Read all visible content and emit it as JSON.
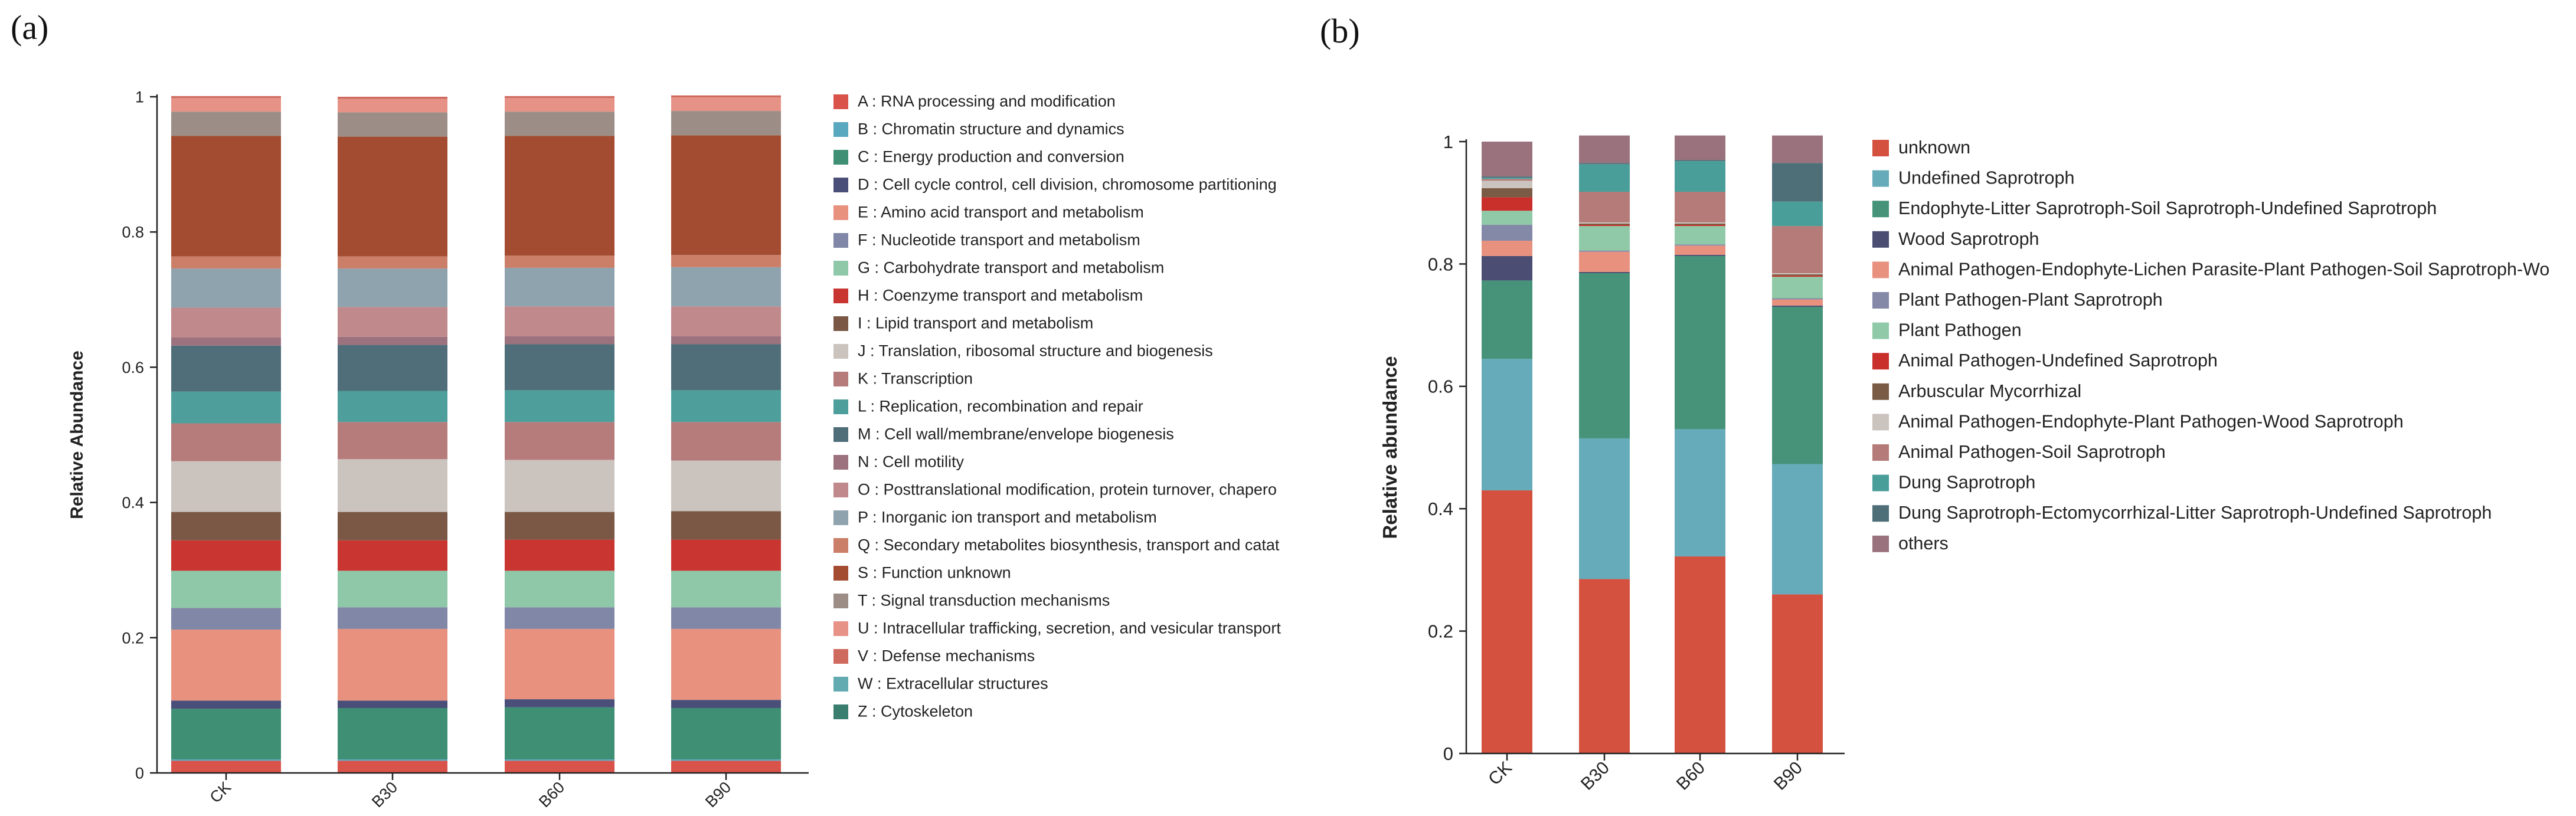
{
  "panel_labels": [
    "(a)",
    "(b)"
  ],
  "chart_data": [
    {
      "type": "bar",
      "stacked": true,
      "title": "",
      "xlabel": "",
      "ylabel": "Relative Abundance",
      "ylim": [
        0,
        1
      ],
      "yticks": [
        0,
        0.2,
        0.4,
        0.6,
        0.8,
        1
      ],
      "ytick_labels": [
        "0",
        "0.2",
        "0.4",
        "0.6",
        "0.8",
        "1"
      ],
      "categories": [
        "CK",
        "B30",
        "B60",
        "B90"
      ],
      "legend_position": "right",
      "series": [
        {
          "name": "A : RNA processing and modification",
          "color": "#D9534B",
          "values": [
            0.018,
            0.018,
            0.018,
            0.018
          ]
        },
        {
          "name": "B : Chromatin structure and dynamics",
          "color": "#5AA8C0",
          "values": [
            0.002,
            0.002,
            0.002,
            0.002
          ]
        },
        {
          "name": "C : Energy production and conversion",
          "color": "#3F8F74",
          "values": [
            0.075,
            0.076,
            0.077,
            0.076
          ]
        },
        {
          "name": "D : Cell cycle control, cell division, chromosome partitioning",
          "color": "#4A4F7A",
          "values": [
            0.012,
            0.011,
            0.012,
            0.012
          ]
        },
        {
          "name": "E : Amino acid transport and metabolism",
          "color": "#E8917E",
          "values": [
            0.105,
            0.106,
            0.104,
            0.105
          ]
        },
        {
          "name": "F : Nucleotide transport and metabolism",
          "color": "#8187A6",
          "values": [
            0.032,
            0.032,
            0.032,
            0.032
          ]
        },
        {
          "name": "G : Carbohydrate transport and metabolism",
          "color": "#8EC8A8",
          "values": [
            0.055,
            0.054,
            0.054,
            0.054
          ]
        },
        {
          "name": "H : Coenzyme transport and metabolism",
          "color": "#C93632",
          "values": [
            0.045,
            0.045,
            0.046,
            0.046
          ]
        },
        {
          "name": "I : Lipid transport and metabolism",
          "color": "#7A5845",
          "values": [
            0.042,
            0.042,
            0.041,
            0.042
          ]
        },
        {
          "name": "J : Translation, ribosomal structure and biogenesis",
          "color": "#CBC3BE",
          "values": [
            0.075,
            0.078,
            0.077,
            0.075
          ]
        },
        {
          "name": "K : Transcription",
          "color": "#B57C7B",
          "values": [
            0.056,
            0.055,
            0.056,
            0.057
          ]
        },
        {
          "name": "L : Replication, recombination and repair",
          "color": "#4E9E9C",
          "values": [
            0.047,
            0.046,
            0.047,
            0.047
          ]
        },
        {
          "name": "M : Cell wall/membrane/envelope biogenesis",
          "color": "#4F6E79",
          "values": [
            0.068,
            0.068,
            0.068,
            0.068
          ]
        },
        {
          "name": "N : Cell motility",
          "color": "#9C727F",
          "values": [
            0.012,
            0.012,
            0.012,
            0.012
          ]
        },
        {
          "name": "O : Posttranslational modification, protein turnover, chapero",
          "color": "#C0898C",
          "values": [
            0.044,
            0.044,
            0.044,
            0.044
          ]
        },
        {
          "name": "P : Inorganic ion transport and metabolism",
          "color": "#8FA3AF",
          "values": [
            0.058,
            0.057,
            0.057,
            0.058
          ]
        },
        {
          "name": "Q : Secondary metabolites biosynthesis, transport and catat",
          "color": "#CB7F68",
          "values": [
            0.018,
            0.018,
            0.018,
            0.018
          ]
        },
        {
          "name": "S : Function unknown",
          "color": "#A34C31",
          "values": [
            0.178,
            0.177,
            0.177,
            0.177
          ]
        },
        {
          "name": "T : Signal transduction mechanisms",
          "color": "#9C8E86",
          "values": [
            0.036,
            0.036,
            0.036,
            0.036
          ]
        },
        {
          "name": "U : Intracellular trafficking, secretion, and vesicular transport",
          "color": "#E79287",
          "values": [
            0.02,
            0.02,
            0.02,
            0.02
          ]
        },
        {
          "name": "V : Defense mechanisms",
          "color": "#CF6B5E",
          "values": [
            0.003,
            0.003,
            0.003,
            0.003
          ]
        },
        {
          "name": "W : Extracellular structures",
          "color": "#62ABB0",
          "values": [
            0.0,
            0.0,
            0.0,
            0.0
          ]
        },
        {
          "name": "Z : Cytoskeleton",
          "color": "#3A7E70",
          "values": [
            0.0,
            0.0,
            0.0,
            0.0
          ]
        }
      ]
    },
    {
      "type": "bar",
      "stacked": true,
      "title": "",
      "xlabel": "",
      "ylabel": "Relative abundance",
      "ylim": [
        0,
        1
      ],
      "yticks": [
        0,
        0.2,
        0.4,
        0.6,
        0.8,
        1
      ],
      "ytick_labels": [
        "0",
        "0.2",
        "0.4",
        "0.6",
        "0.8",
        "1"
      ],
      "categories": [
        "CK",
        "B30",
        "B60",
        "B90"
      ],
      "legend_position": "right",
      "series": [
        {
          "name": "unknown",
          "color": "#D4503F",
          "values": [
            0.43,
            0.285,
            0.322,
            0.26
          ]
        },
        {
          "name": "Undefined Saprotroph",
          "color": "#66ABB9",
          "values": [
            0.215,
            0.23,
            0.208,
            0.213
          ]
        },
        {
          "name": "Endophyte-Litter Saprotroph-Soil Saprotroph-Undefined Saprotroph",
          "color": "#46937A",
          "values": [
            0.128,
            0.27,
            0.283,
            0.257
          ]
        },
        {
          "name": "Wood Saprotroph",
          "color": "#4B4E72",
          "values": [
            0.04,
            0.002,
            0.002,
            0.002
          ]
        },
        {
          "name": "Animal Pathogen-Endophyte-Lichen Parasite-Plant Pathogen-Soil Saprotroph-Wo",
          "color": "#E8917E",
          "values": [
            0.025,
            0.033,
            0.015,
            0.01
          ]
        },
        {
          "name": "Plant Pathogen-Plant Saprotroph",
          "color": "#8489A8",
          "values": [
            0.026,
            0.002,
            0.002,
            0.002
          ]
        },
        {
          "name": "Plant Pathogen",
          "color": "#8FC9A7",
          "values": [
            0.023,
            0.04,
            0.03,
            0.035
          ]
        },
        {
          "name": "Animal Pathogen-Undefined Saprotroph",
          "color": "#C9302C",
          "values": [
            0.022,
            0.002,
            0.002,
            0.002
          ]
        },
        {
          "name": "Arbuscular Mycorrhizal",
          "color": "#7A5B45",
          "values": [
            0.015,
            0.002,
            0.002,
            0.002
          ]
        },
        {
          "name": "Animal Pathogen-Endophyte-Plant Pathogen-Wood Saprotroph",
          "color": "#CBC3BE",
          "values": [
            0.012,
            0.002,
            0.002,
            0.002
          ]
        },
        {
          "name": "Animal Pathogen-Soil Saprotroph",
          "color": "#B47B78",
          "values": [
            0.003,
            0.05,
            0.05,
            0.077
          ]
        },
        {
          "name": "Dung Saprotroph",
          "color": "#4A9E9A",
          "values": [
            0.002,
            0.045,
            0.05,
            0.04
          ]
        },
        {
          "name": "Dung Saprotroph-Ectomycorrhizal-Litter Saprotroph-Undefined Saprotroph",
          "color": "#4E6E78",
          "values": [
            0.002,
            0.002,
            0.002,
            0.063
          ]
        },
        {
          "name": "others",
          "color": "#9A727E",
          "values": [
            0.057,
            0.045,
            0.04,
            0.045
          ]
        }
      ]
    }
  ]
}
